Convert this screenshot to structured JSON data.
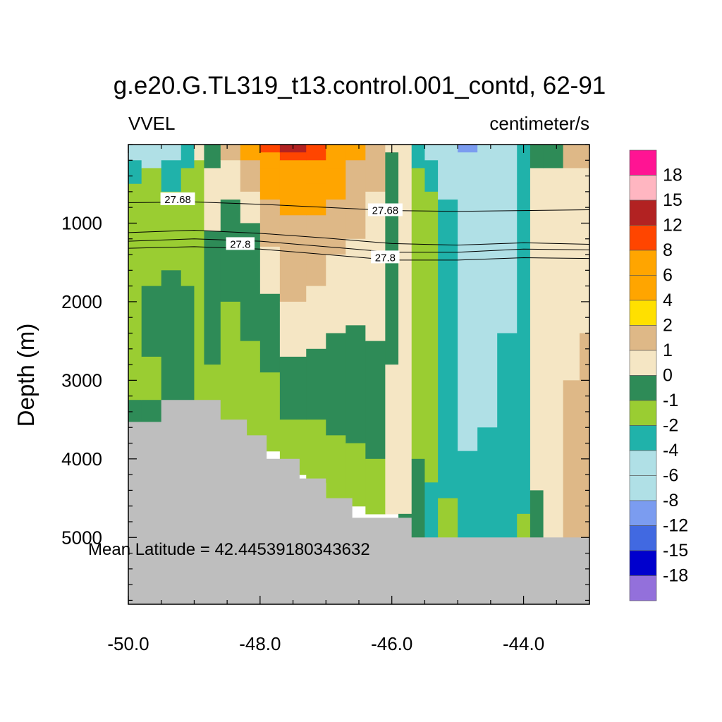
{
  "chart_data": {
    "type": "heatmap",
    "title": "g.e20.G.TL319_t13.control.001_contd, 62-91",
    "left_label": "VVEL",
    "right_label": "centimeter/s",
    "xlabel": "",
    "ylabel": "Depth (m)",
    "xlim": [
      -50.0,
      -43.0
    ],
    "ylim": [
      5850,
      0
    ],
    "x_ticks": [
      {
        "value": -50.0,
        "label": "-50.0"
      },
      {
        "value": -48.0,
        "label": "-48.0"
      },
      {
        "value": -46.0,
        "label": "-46.0"
      },
      {
        "value": -44.0,
        "label": "-44.0"
      }
    ],
    "y_ticks": [
      {
        "value": 1000,
        "label": "1000"
      },
      {
        "value": 2000,
        "label": "2000"
      },
      {
        "value": 3000,
        "label": "3000"
      },
      {
        "value": 4000,
        "label": "4000"
      },
      {
        "value": 5000,
        "label": "5000"
      }
    ],
    "annotation": "Mean Latitude = 42.44539180343632",
    "colorbar": {
      "levels": [
        "18",
        "15",
        "12",
        "8",
        "6",
        "4",
        "2",
        "1",
        "0",
        "-1",
        "-2",
        "-4",
        "-6",
        "-8",
        "-12",
        "-15",
        "-18"
      ],
      "colors": [
        "#ff1493",
        "#ffb6c1",
        "#b22222",
        "#ff4500",
        "#ffa500",
        "#ffa500",
        "#ffe000",
        "#deb887",
        "#f5e6c4",
        "#2e8b57",
        "#9acd32",
        "#20b2aa",
        "#b0e0e6",
        "#b0e0e6",
        "#7b9cf0",
        "#4169e1",
        "#0000cd",
        "#9370db"
      ]
    },
    "contours": [
      {
        "label": "27.68",
        "points": [
          [
            -50.0,
            740
          ],
          [
            -49.0,
            730
          ],
          [
            -48.0,
            760
          ],
          [
            -47.0,
            800
          ],
          [
            -46.0,
            840
          ],
          [
            -45.0,
            850
          ],
          [
            -44.0,
            840
          ],
          [
            -43.0,
            830
          ]
        ],
        "label_positions": [
          [
            -49.25,
            690
          ],
          [
            -46.1,
            830
          ]
        ]
      },
      {
        "label": "",
        "points": [
          [
            -50.0,
            1120
          ],
          [
            -49.0,
            1090
          ],
          [
            -48.0,
            1130
          ],
          [
            -47.0,
            1190
          ],
          [
            -46.0,
            1260
          ],
          [
            -45.0,
            1280
          ],
          [
            -44.0,
            1250
          ],
          [
            -43.0,
            1270
          ]
        ]
      },
      {
        "label": "",
        "points": [
          [
            -50.0,
            1230
          ],
          [
            -49.0,
            1200
          ],
          [
            -48.0,
            1230
          ],
          [
            -47.0,
            1300
          ],
          [
            -46.0,
            1370
          ],
          [
            -45.0,
            1370
          ],
          [
            -44.0,
            1330
          ],
          [
            -43.0,
            1340
          ]
        ]
      },
      {
        "label": "27.8",
        "points": [
          [
            -50.0,
            1320
          ],
          [
            -49.0,
            1300
          ],
          [
            -48.0,
            1330
          ],
          [
            -47.0,
            1400
          ],
          [
            -46.0,
            1470
          ],
          [
            -45.0,
            1470
          ],
          [
            -44.0,
            1440
          ],
          [
            -43.0,
            1450
          ]
        ],
        "label_positions": [
          [
            -48.3,
            1260
          ],
          [
            -46.1,
            1430
          ]
        ]
      }
    ],
    "columns": [
      {
        "x": [
          -50.0,
          -49.8
        ],
        "bands": [
          [
            0,
            200,
            "-4"
          ],
          [
            200,
            500,
            "-2"
          ],
          [
            500,
            3250,
            "-1"
          ],
          [
            3250,
            3530,
            "0"
          ]
        ]
      },
      {
        "x": [
          -49.8,
          -49.5
        ],
        "bands": [
          [
            0,
            300,
            "-4"
          ],
          [
            300,
            1800,
            "-1"
          ],
          [
            1800,
            2700,
            "0"
          ],
          [
            2700,
            3250,
            "-1"
          ],
          [
            3250,
            3530,
            "0"
          ]
        ]
      },
      {
        "x": [
          -49.5,
          -49.2
        ],
        "bands": [
          [
            0,
            200,
            "-4"
          ],
          [
            200,
            600,
            "-2"
          ],
          [
            600,
            1600,
            "-1"
          ],
          [
            1600,
            3250,
            "0"
          ]
        ]
      },
      {
        "x": [
          -49.2,
          -49.0
        ],
        "bands": [
          [
            0,
            300,
            "-2"
          ],
          [
            300,
            1800,
            "-1"
          ],
          [
            1800,
            3250,
            "0"
          ]
        ]
      },
      {
        "x": [
          -49.0,
          -48.85
        ],
        "bands": [
          [
            0,
            200,
            "1"
          ],
          [
            200,
            3300,
            "-1"
          ]
        ]
      },
      {
        "x": [
          -48.85,
          -48.6
        ],
        "bands": [
          [
            0,
            300,
            "0"
          ],
          [
            300,
            1100,
            "1"
          ],
          [
            1100,
            2800,
            "0"
          ],
          [
            2800,
            3500,
            "-1"
          ]
        ]
      },
      {
        "x": [
          -48.6,
          -48.3
        ],
        "bands": [
          [
            0,
            200,
            "2"
          ],
          [
            200,
            700,
            "1"
          ],
          [
            700,
            2000,
            "0"
          ],
          [
            2000,
            3700,
            "-1"
          ]
        ]
      },
      {
        "x": [
          -48.3,
          -48.0
        ],
        "bands": [
          [
            0,
            200,
            "6"
          ],
          [
            200,
            600,
            "2"
          ],
          [
            600,
            1000,
            "1"
          ],
          [
            1000,
            2500,
            "0"
          ],
          [
            2500,
            3800,
            "-1"
          ]
        ]
      },
      {
        "x": [
          -48.0,
          -47.7
        ],
        "bands": [
          [
            0,
            100,
            "12"
          ],
          [
            100,
            300,
            "8"
          ],
          [
            300,
            700,
            "6"
          ],
          [
            700,
            1300,
            "2"
          ],
          [
            1300,
            1900,
            "1"
          ],
          [
            1900,
            2900,
            "0"
          ],
          [
            2900,
            3900,
            "-1"
          ]
        ]
      },
      {
        "x": [
          -47.7,
          -47.3
        ],
        "bands": [
          [
            0,
            100,
            "15"
          ],
          [
            100,
            200,
            "12"
          ],
          [
            200,
            400,
            "8"
          ],
          [
            400,
            900,
            "6"
          ],
          [
            900,
            2000,
            "2"
          ],
          [
            2000,
            2700,
            "1"
          ],
          [
            2700,
            3500,
            "0"
          ],
          [
            3500,
            4200,
            "-1"
          ]
        ]
      },
      {
        "x": [
          -47.3,
          -47.0
        ],
        "bands": [
          [
            0,
            200,
            "12"
          ],
          [
            200,
            500,
            "8"
          ],
          [
            500,
            900,
            "6"
          ],
          [
            900,
            1800,
            "2"
          ],
          [
            1800,
            2600,
            "1"
          ],
          [
            2600,
            3500,
            "0"
          ],
          [
            3500,
            4300,
            "-1"
          ]
        ]
      },
      {
        "x": [
          -47.0,
          -46.7
        ],
        "bands": [
          [
            0,
            300,
            "8"
          ],
          [
            300,
            700,
            "6"
          ],
          [
            700,
            1400,
            "2"
          ],
          [
            1400,
            2400,
            "1"
          ],
          [
            2400,
            3700,
            "0"
          ],
          [
            3700,
            4500,
            "-1"
          ]
        ]
      },
      {
        "x": [
          -46.7,
          -46.4
        ],
        "bands": [
          [
            0,
            200,
            "6"
          ],
          [
            200,
            1200,
            "2"
          ],
          [
            1200,
            2300,
            "1"
          ],
          [
            2300,
            3800,
            "0"
          ],
          [
            3800,
            4600,
            "-1"
          ]
        ]
      },
      {
        "x": [
          -46.4,
          -46.1
        ],
        "bands": [
          [
            0,
            600,
            "2"
          ],
          [
            600,
            2500,
            "1"
          ],
          [
            2500,
            4000,
            "0"
          ],
          [
            4000,
            4700,
            "-1"
          ]
        ]
      },
      {
        "x": [
          -46.1,
          -45.9
        ],
        "bands": [
          [
            0,
            100,
            "1"
          ],
          [
            100,
            2800,
            "0"
          ],
          [
            2800,
            4700,
            "1"
          ]
        ]
      },
      {
        "x": [
          -45.9,
          -45.7
        ],
        "bands": [
          [
            0,
            4700,
            "1"
          ],
          [
            4700,
            5000,
            "0"
          ]
        ]
      },
      {
        "x": [
          -45.7,
          -45.5
        ],
        "bands": [
          [
            0,
            300,
            "-2"
          ],
          [
            300,
            1300,
            "-1"
          ],
          [
            1300,
            4000,
            "-1"
          ],
          [
            4000,
            5000,
            "0"
          ]
        ]
      },
      {
        "x": [
          -45.5,
          -45.3
        ],
        "bands": [
          [
            0,
            200,
            "-4"
          ],
          [
            200,
            600,
            "-2"
          ],
          [
            600,
            4300,
            "-1"
          ],
          [
            4300,
            5000,
            "-2"
          ]
        ]
      },
      {
        "x": [
          -45.3,
          -45.0
        ],
        "bands": [
          [
            0,
            100,
            "-6"
          ],
          [
            100,
            700,
            "-4"
          ],
          [
            700,
            1300,
            "-2"
          ],
          [
            1300,
            4500,
            "-2"
          ],
          [
            4500,
            5000,
            "-1"
          ]
        ]
      },
      {
        "x": [
          -45.0,
          -44.7
        ],
        "bands": [
          [
            0,
            100,
            "-8"
          ],
          [
            100,
            500,
            "-6"
          ],
          [
            500,
            3900,
            "-4"
          ],
          [
            3900,
            5000,
            "-2"
          ]
        ]
      },
      {
        "x": [
          -44.7,
          -44.4
        ],
        "bands": [
          [
            0,
            300,
            "-6"
          ],
          [
            300,
            3600,
            "-4"
          ],
          [
            3600,
            5000,
            "-2"
          ]
        ]
      },
      {
        "x": [
          -44.4,
          -44.1
        ],
        "bands": [
          [
            0,
            200,
            "-4"
          ],
          [
            200,
            2400,
            "-4"
          ],
          [
            2400,
            5000,
            "-2"
          ]
        ]
      },
      {
        "x": [
          -44.1,
          -43.9
        ],
        "bands": [
          [
            0,
            500,
            "-2"
          ],
          [
            500,
            4700,
            "-2"
          ],
          [
            4700,
            5000,
            "-1"
          ]
        ]
      },
      {
        "x": [
          -43.9,
          -43.7
        ],
        "bands": [
          [
            0,
            300,
            "0"
          ],
          [
            300,
            4400,
            "1"
          ],
          [
            4400,
            5000,
            "0"
          ]
        ]
      },
      {
        "x": [
          -43.7,
          -43.4
        ],
        "bands": [
          [
            0,
            300,
            "0"
          ],
          [
            300,
            4200,
            "1"
          ],
          [
            4200,
            5000,
            "1"
          ]
        ]
      },
      {
        "x": [
          -43.4,
          -43.15
        ],
        "bands": [
          [
            0,
            300,
            "2"
          ],
          [
            300,
            3000,
            "1"
          ],
          [
            3000,
            5000,
            "2"
          ]
        ]
      },
      {
        "x": [
          -43.15,
          -43.0
        ],
        "bands": [
          [
            0,
            300,
            "2"
          ],
          [
            300,
            2400,
            "1"
          ],
          [
            2400,
            5000,
            "2"
          ]
        ]
      }
    ],
    "bathymetry": [
      [
        -50.0,
        3530
      ],
      [
        -49.5,
        3530
      ],
      [
        -49.5,
        3250
      ],
      [
        -48.6,
        3250
      ],
      [
        -48.6,
        3500
      ],
      [
        -48.2,
        3500
      ],
      [
        -48.2,
        3700
      ],
      [
        -47.9,
        3700
      ],
      [
        -47.9,
        4000
      ],
      [
        -47.4,
        4000
      ],
      [
        -47.4,
        4250
      ],
      [
        -47.0,
        4250
      ],
      [
        -47.0,
        4500
      ],
      [
        -46.6,
        4500
      ],
      [
        -46.6,
        4750
      ],
      [
        -45.7,
        4750
      ],
      [
        -45.7,
        5000
      ],
      [
        -43.0,
        5000
      ]
    ]
  }
}
